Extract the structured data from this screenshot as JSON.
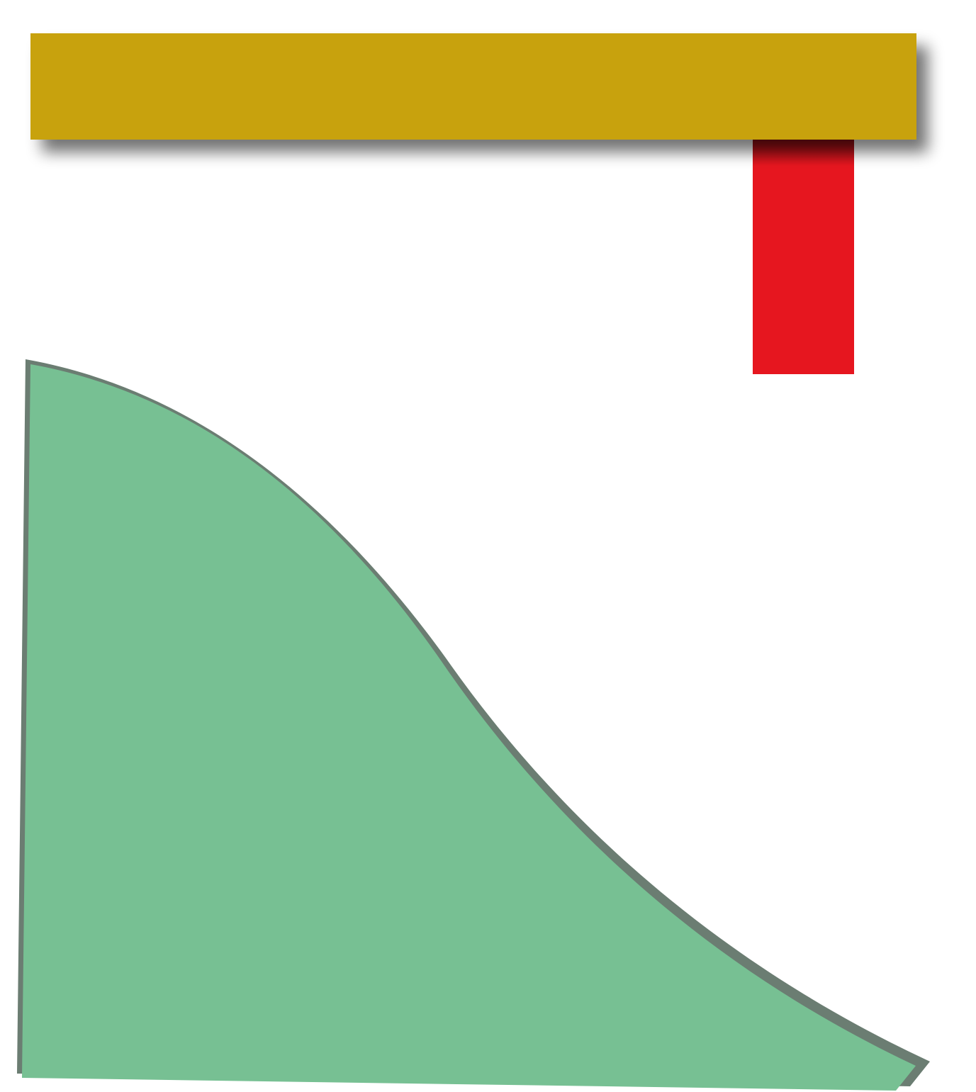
{
  "shapes": {
    "top_bar": {
      "fill": "#C8A207"
    },
    "hanging_post": {
      "fill": "#E6161F"
    },
    "hill": {
      "fill": "#77C093",
      "outline": "#6B7D72"
    }
  }
}
